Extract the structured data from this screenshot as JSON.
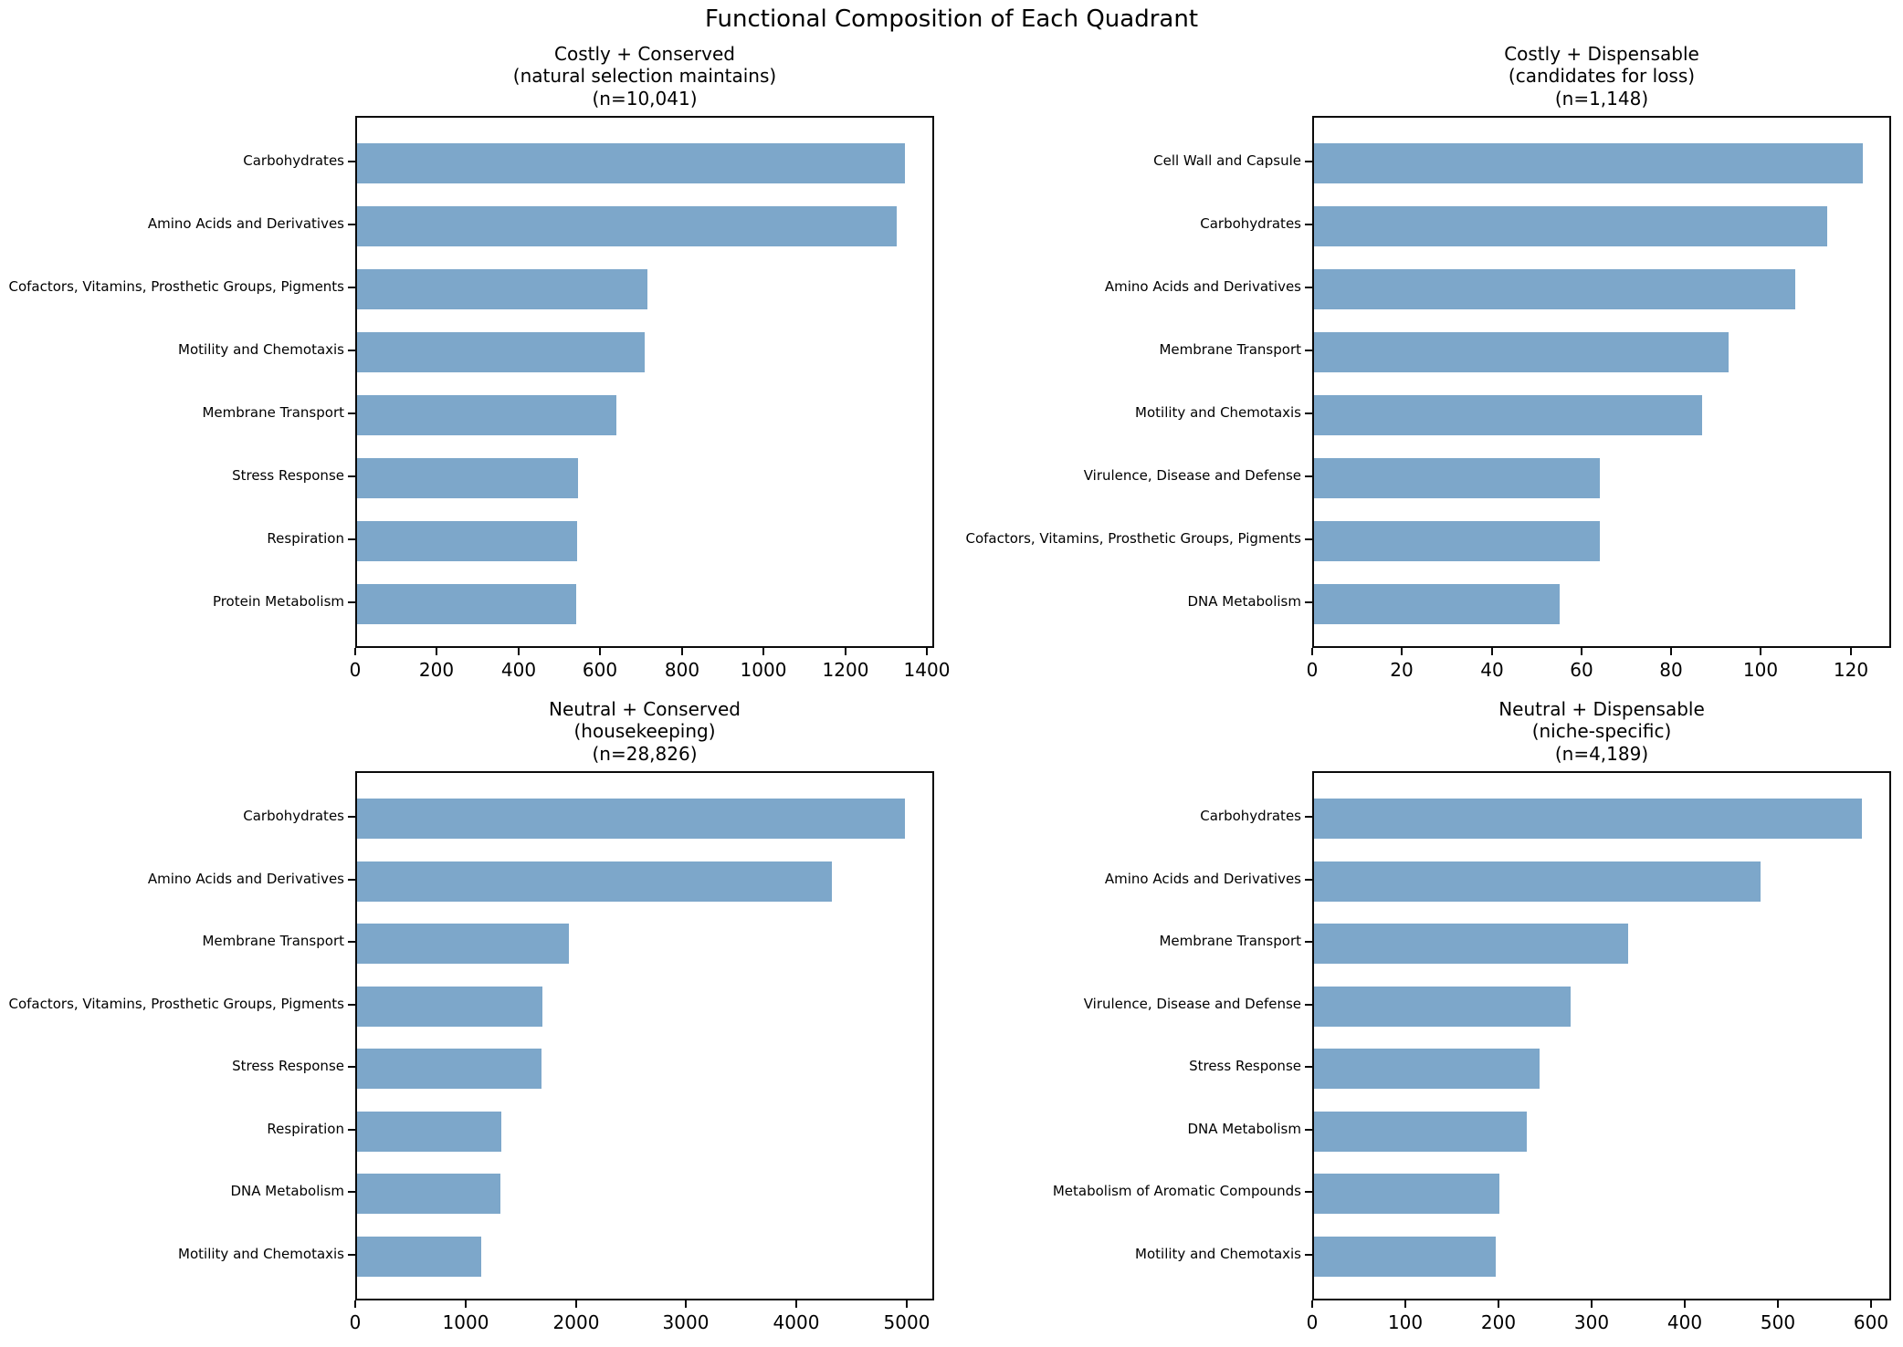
{
  "suptitle": "Functional Composition of Each Quadrant",
  "bar_color": "#7da7ca",
  "axis_color": "#0a0a0a",
  "chart_data": [
    {
      "type": "bar",
      "orientation": "horizontal",
      "title": "Costly + Conserved\n(natural selection maintains)\n(n=10,041)",
      "categories": [
        "Carbohydrates",
        "Amino Acids and Derivatives",
        "Cofactors, Vitamins, Prosthetic Groups, Pigments",
        "Motility and Chemotaxis",
        "Membrane Transport",
        "Stress Response",
        "Respiration",
        "Protein Metabolism"
      ],
      "values": [
        1350,
        1330,
        715,
        710,
        640,
        545,
        543,
        540
      ],
      "xticks": [
        0,
        200,
        400,
        600,
        800,
        1000,
        1200,
        1400
      ],
      "xlim": [
        0,
        1418
      ],
      "grid": false,
      "legend": null,
      "xlabel": "",
      "ylabel": ""
    },
    {
      "type": "bar",
      "orientation": "horizontal",
      "title": "Costly + Dispensable\n(candidates for loss)\n(n=1,148)",
      "categories": [
        "Cell Wall and Capsule",
        "Carbohydrates",
        "Amino Acids and Derivatives",
        "Membrane Transport",
        "Motility and Chemotaxis",
        "Virulence, Disease and Defense",
        "Cofactors, Vitamins, Prosthetic Groups, Pigments",
        "DNA Metabolism"
      ],
      "values": [
        123,
        115,
        108,
        93,
        87,
        64,
        64,
        55
      ],
      "xticks": [
        0,
        20,
        40,
        60,
        80,
        100,
        120
      ],
      "xlim": [
        0,
        129
      ],
      "grid": false,
      "legend": null,
      "xlabel": "",
      "ylabel": ""
    },
    {
      "type": "bar",
      "orientation": "horizontal",
      "title": "Neutral + Conserved\n(housekeeping)\n(n=28,826)",
      "categories": [
        "Carbohydrates",
        "Amino Acids and Derivatives",
        "Membrane Transport",
        "Cofactors, Vitamins, Prosthetic Groups, Pigments",
        "Stress Response",
        "Respiration",
        "DNA Metabolism",
        "Motility and Chemotaxis"
      ],
      "values": [
        5000,
        4330,
        1930,
        1690,
        1680,
        1315,
        1305,
        1130
      ],
      "xticks": [
        0,
        1000,
        2000,
        3000,
        4000,
        5000
      ],
      "xlim": [
        0,
        5250
      ],
      "grid": false,
      "legend": null,
      "xlabel": "",
      "ylabel": ""
    },
    {
      "type": "bar",
      "orientation": "horizontal",
      "title": "Neutral + Dispensable\n(niche-specific)\n(n=4,189)",
      "categories": [
        "Carbohydrates",
        "Amino Acids and Derivatives",
        "Membrane Transport",
        "Virulence, Disease and Defense",
        "Stress Response",
        "DNA Metabolism",
        "Metabolism of Aromatic Compounds",
        "Motility and Chemotaxis"
      ],
      "values": [
        592,
        483,
        340,
        277,
        244,
        230,
        200,
        196
      ],
      "xticks": [
        0,
        100,
        200,
        300,
        400,
        500,
        600
      ],
      "xlim": [
        0,
        622
      ],
      "grid": false,
      "legend": null,
      "xlabel": "",
      "ylabel": ""
    }
  ]
}
